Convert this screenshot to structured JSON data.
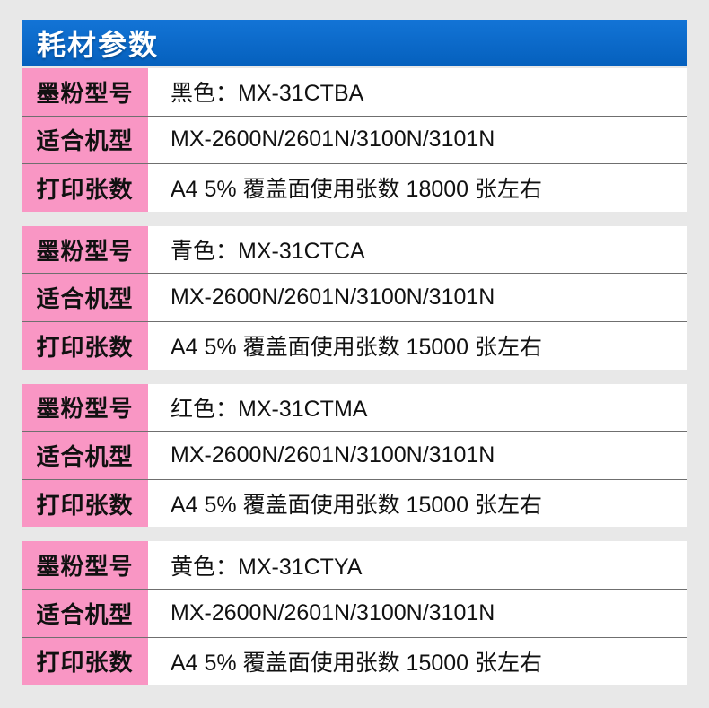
{
  "header": {
    "title": "耗材参数"
  },
  "table": {
    "row_labels": {
      "toner_model": "墨粉型号",
      "compatible_models": "适合机型",
      "print_pages": "打印张数"
    },
    "groups": [
      {
        "toner_model": "黑色：MX-31CTBA",
        "compatible_models": "MX-2600N/2601N/3100N/3101N",
        "print_pages": "A4 5% 覆盖面使用张数 18000 张左右"
      },
      {
        "toner_model": "青色：MX-31CTCA",
        "compatible_models": "MX-2600N/2601N/3100N/3101N",
        "print_pages": "A4 5% 覆盖面使用张数 15000 张左右"
      },
      {
        "toner_model": "红色：MX-31CTMA",
        "compatible_models": "MX-2600N/2601N/3100N/3101N",
        "print_pages": "A4 5% 覆盖面使用张数 15000 张左右"
      },
      {
        "toner_model": "黄色：MX-31CTYA",
        "compatible_models": "MX-2600N/2601N/3100N/3101N",
        "print_pages": "A4 5% 覆盖面使用张数 15000 张左右"
      }
    ]
  },
  "colors": {
    "page_bg": "#e8e8e8",
    "header_bg": "#0560bd",
    "header_bg_top": "#1374d6",
    "header_text": "#ffffff",
    "label_bg": "#f996c4",
    "value_bg": "#ffffff",
    "row_divider": "#6f6f6f",
    "cell_text": "#111111"
  }
}
